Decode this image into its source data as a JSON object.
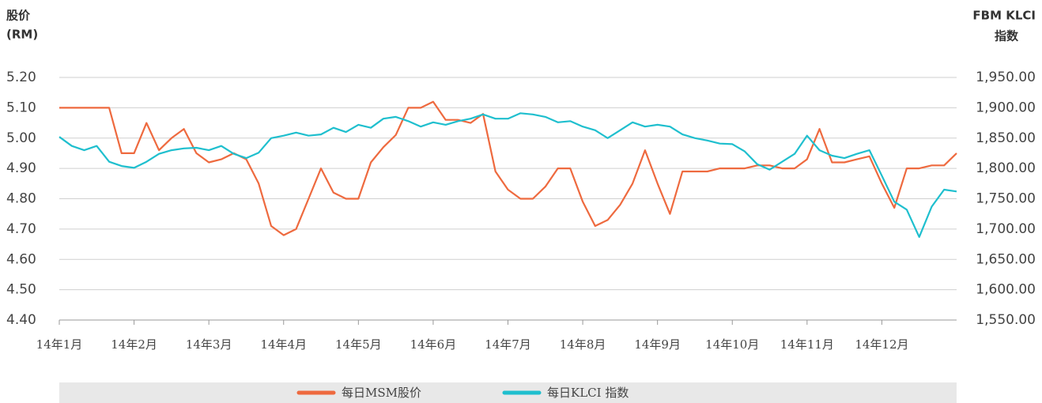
{
  "chart_data": {
    "type": "line",
    "y_label": [
      "股价",
      "(RM)"
    ],
    "y2_label": [
      "FBM KLCI",
      "指数"
    ],
    "categories": [
      "14年1月",
      null,
      null,
      null,
      null,
      null,
      "14年2月",
      null,
      null,
      null,
      null,
      null,
      "14年3月",
      null,
      null,
      null,
      null,
      null,
      "14年4月",
      null,
      null,
      null,
      null,
      null,
      "14年5月",
      null,
      null,
      null,
      null,
      null,
      "14年6月",
      null,
      null,
      null,
      null,
      null,
      "14年7月",
      null,
      null,
      null,
      null,
      null,
      "14年8月",
      null,
      null,
      null,
      null,
      null,
      "14年9月",
      null,
      null,
      null,
      null,
      null,
      "14年10月",
      null,
      null,
      null,
      null,
      null,
      "14年11月",
      null,
      null,
      null,
      null,
      null,
      "14年12月",
      null,
      null,
      null,
      null,
      null,
      null
    ],
    "series": [
      {
        "name": "每日MSM股价",
        "color": "#ee6a3f",
        "axis": "y",
        "values": [
          5.1,
          5.1,
          5.1,
          5.1,
          5.1,
          4.95,
          4.95,
          5.05,
          4.96,
          5.0,
          5.03,
          4.95,
          4.92,
          4.93,
          4.95,
          4.93,
          4.85,
          4.71,
          4.68,
          4.7,
          4.8,
          4.9,
          4.82,
          4.8,
          4.8,
          4.92,
          4.97,
          5.01,
          5.1,
          5.1,
          5.12,
          5.06,
          5.06,
          5.05,
          5.08,
          4.89,
          4.83,
          4.8,
          4.8,
          4.84,
          4.9,
          4.9,
          4.79,
          4.71,
          4.73,
          4.78,
          4.85,
          4.96,
          4.85,
          4.75,
          4.89,
          4.89,
          4.89,
          4.9,
          4.9,
          4.9,
          4.91,
          4.91,
          4.9,
          4.9,
          4.93,
          5.03,
          4.92,
          4.92,
          4.93,
          4.94,
          4.85,
          4.77,
          4.9,
          4.9,
          4.91,
          4.91,
          4.95
        ]
      },
      {
        "name": "每日KLCI 指数",
        "color": "#1fbfce",
        "axis": "y2",
        "values": [
          1852,
          1837,
          1830,
          1837,
          1811,
          1804,
          1801,
          1811,
          1824,
          1830,
          1833,
          1834,
          1830,
          1837,
          1824,
          1817,
          1826,
          1850,
          1854,
          1859,
          1854,
          1856,
          1867,
          1860,
          1872,
          1867,
          1882,
          1885,
          1878,
          1869,
          1876,
          1872,
          1878,
          1882,
          1889,
          1882,
          1882,
          1891,
          1889,
          1885,
          1876,
          1878,
          1869,
          1863,
          1850,
          1863,
          1876,
          1869,
          1872,
          1869,
          1856,
          1850,
          1846,
          1841,
          1840,
          1828,
          1807,
          1798,
          1811,
          1824,
          1854,
          1830,
          1821,
          1817,
          1824,
          1830,
          1788,
          1745,
          1732,
          1687,
          1737,
          1765,
          1762
        ]
      }
    ],
    "ylim": [
      4.4,
      5.2
    ],
    "yticks": [
      {
        "value": 4.4,
        "label": "4.40"
      },
      {
        "value": 4.5,
        "label": "4.50"
      },
      {
        "value": 4.6,
        "label": "4.60"
      },
      {
        "value": 4.7,
        "label": "4.70"
      },
      {
        "value": 4.8,
        "label": "4.80"
      },
      {
        "value": 4.9,
        "label": "4.90"
      },
      {
        "value": 5.0,
        "label": "5.00"
      },
      {
        "value": 5.1,
        "label": "5.10"
      },
      {
        "value": 5.2,
        "label": "5.20"
      }
    ],
    "y2lim": [
      1550,
      1950
    ],
    "y2ticks": [
      {
        "value": 1550,
        "label": "1,550.00"
      },
      {
        "value": 1600,
        "label": "1,600.00"
      },
      {
        "value": 1650,
        "label": "1,650.00"
      },
      {
        "value": 1700,
        "label": "1,700.00"
      },
      {
        "value": 1750,
        "label": "1,750.00"
      },
      {
        "value": 1800,
        "label": "1,800.00"
      },
      {
        "value": 1850,
        "label": "1,850.00"
      },
      {
        "value": 1900,
        "label": "1,900.00"
      },
      {
        "value": 1950,
        "label": "1,950.00"
      }
    ],
    "grid": true,
    "legend": "bottom"
  }
}
